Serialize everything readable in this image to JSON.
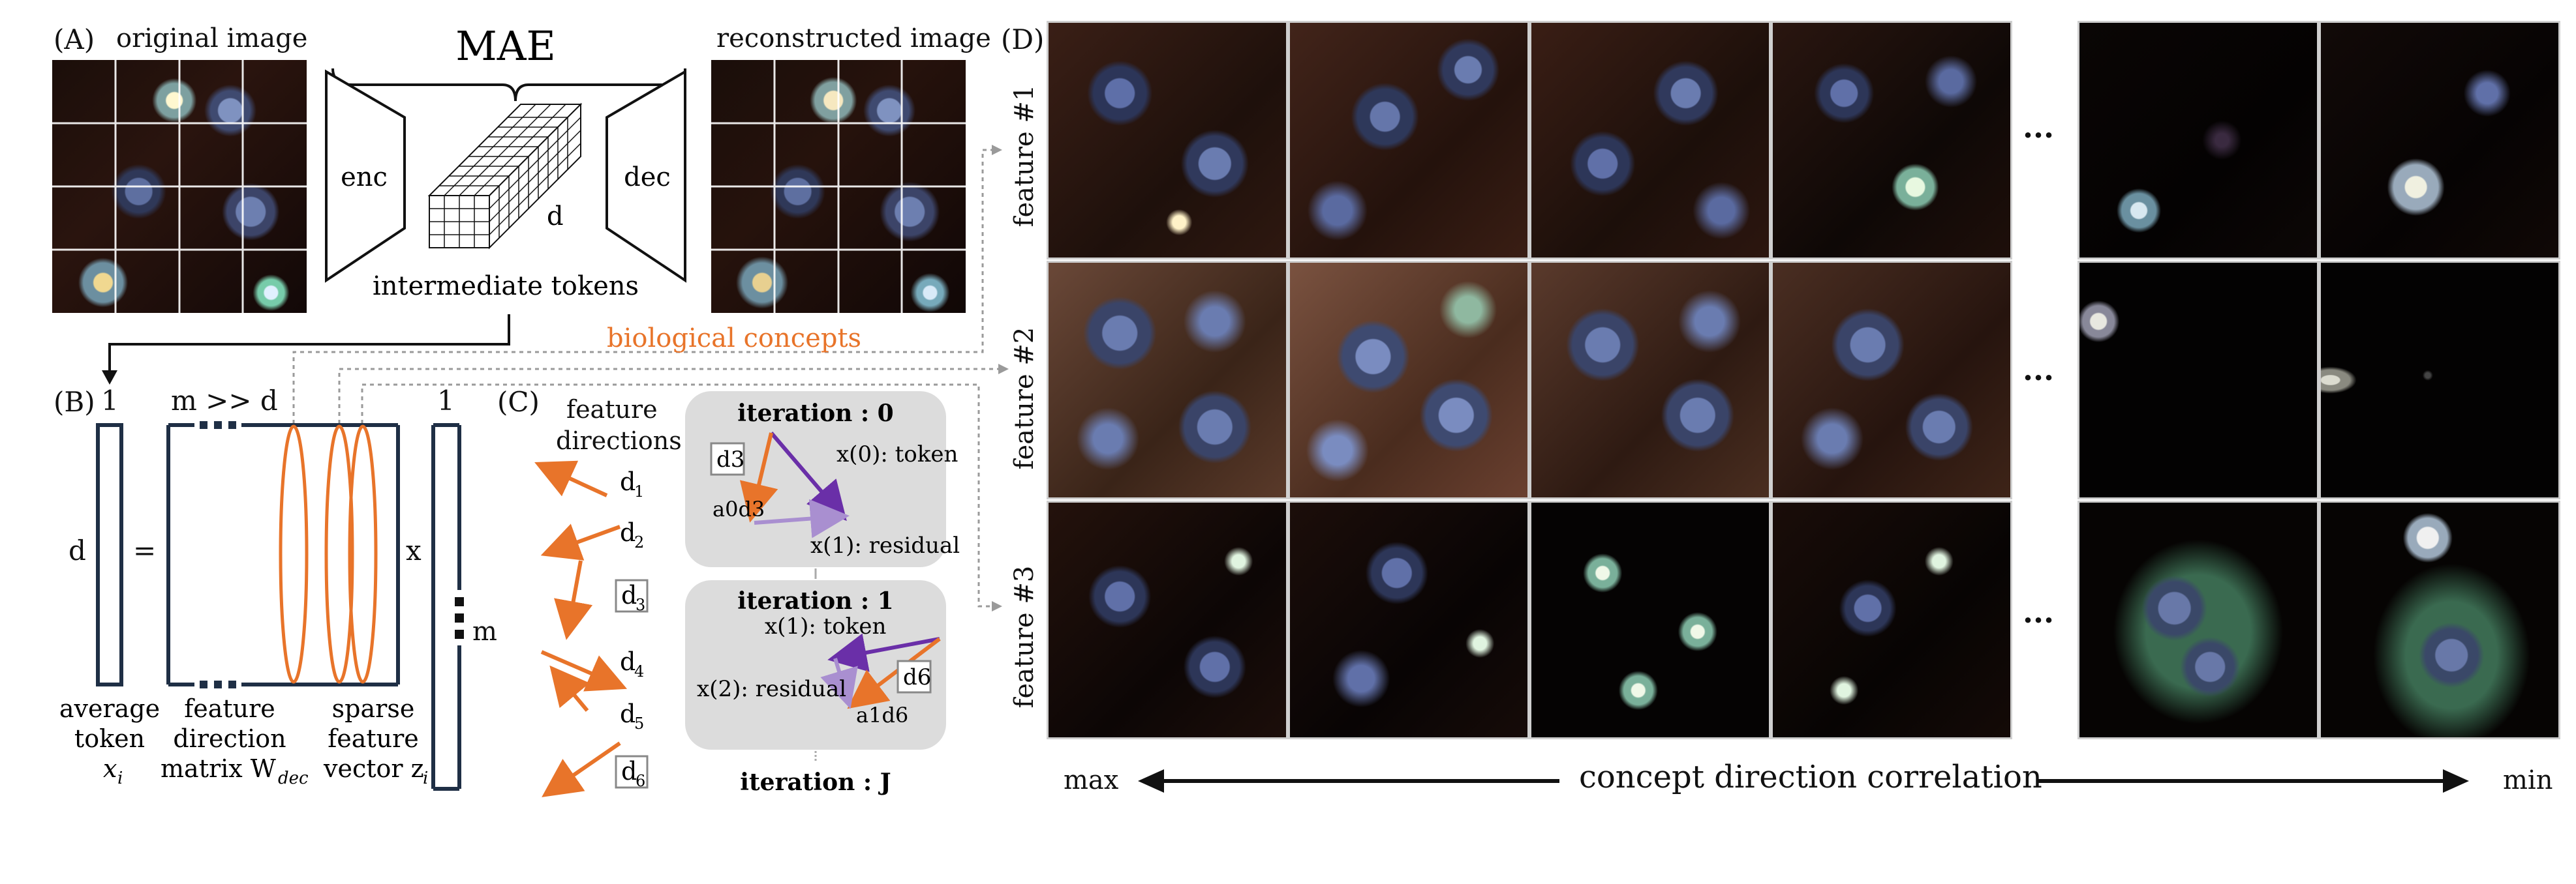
{
  "panelA": {
    "label": "(A)",
    "original_caption": "original image",
    "mae_title": "MAE",
    "enc_label": "enc",
    "dec_label": "dec",
    "dim_label": "d",
    "tokens_caption": "intermediate tokens",
    "reconstructed_caption": "reconstructed image"
  },
  "concepts_label": "biological concepts",
  "panelB": {
    "label": "(B)",
    "one_left": "1",
    "mgtd": "m >> d",
    "one_right": "1",
    "d_left": "d",
    "equals": "=",
    "x_label": "x",
    "m_label": "m",
    "cap_token_1": "average",
    "cap_token_2": "token",
    "cap_token_3": "x",
    "cap_token_3_sub": "i",
    "cap_matrix_1": "feature",
    "cap_matrix_2": "direction",
    "cap_matrix_3": "matrix W",
    "cap_matrix_3_sub": "dec",
    "cap_sparse_1": "sparse",
    "cap_sparse_2": "feature",
    "cap_sparse_3": "vector z",
    "cap_sparse_3_sub": "i"
  },
  "panelC": {
    "label": "(C)",
    "feat_dir_1": "feature",
    "feat_dir_2": "directions",
    "directions": [
      "d",
      "d",
      "d",
      "d",
      "d",
      "d"
    ],
    "direction_subs": [
      "1",
      "2",
      "3",
      "4",
      "5",
      "6"
    ],
    "iter0_title": "iteration : 0",
    "iter0_token": "x(0): token",
    "iter0_residual": "x(1): residual",
    "iter0_box": "d3",
    "iter0_coef": "a0d3",
    "iter1_title": "iteration : 1",
    "iter1_token": "x(1): token",
    "iter1_residual": "x(2): residual",
    "iter1_box": "d6",
    "iter1_coef": "a1d6",
    "iterJ_title": "iteration : J"
  },
  "panelD": {
    "label": "(D)",
    "features": [
      "feature #1",
      "feature #2",
      "feature #3"
    ],
    "ellipsis": "···",
    "axis_max": "max",
    "axis_title": "concept direction correlation",
    "axis_min": "min"
  },
  "colors": {
    "orange": "#e8742a",
    "purple": "#6a2fa8",
    "light_purple": "#a98fd0",
    "navy": "#1f2f45",
    "gray_box": "#dcdcdc"
  }
}
